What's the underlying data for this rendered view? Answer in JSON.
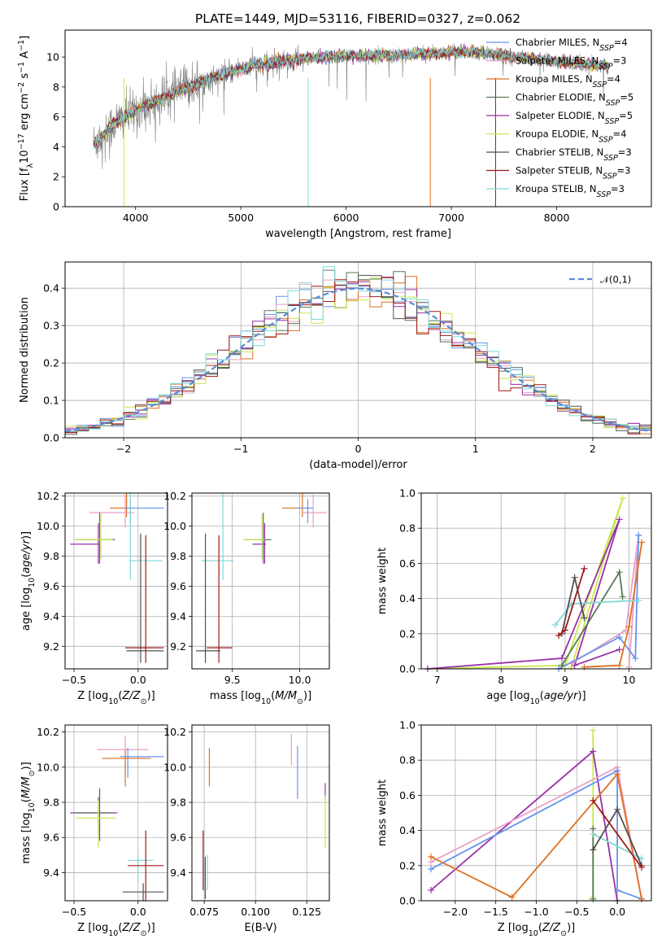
{
  "title": "PLATE=1449, MJD=53116, FIBERID=0327, z=0.062",
  "colors": {
    "chabrier_miles": "#6495ed",
    "salpeter_miles": "#e9a0c8",
    "kroupa_miles": "#e07020",
    "chabrier_elodie": "#587858",
    "salpeter_elodie": "#9b2fa8",
    "kroupa_elodie": "#c8e850",
    "chabrier_stelib": "#505050",
    "salpeter_stelib": "#a01818",
    "kroupa_stelib": "#80d8d8",
    "normal": "#5a8ad8",
    "spectrum": "#808080",
    "grid": "#b0b0b0"
  },
  "legend_spectrum": [
    {
      "key": "chabrier_miles",
      "label": "Chabrier MILES, N",
      "sub": "SSP",
      "suffix": "=4"
    },
    {
      "key": "salpeter_miles",
      "label": "Salpeter MILES, N",
      "sub": "SSP",
      "suffix": "=3"
    },
    {
      "key": "kroupa_miles",
      "label": "Kroupa MILES, N",
      "sub": "SSP",
      "suffix": "=4"
    },
    {
      "key": "chabrier_elodie",
      "label": "Chabrier ELODIE, N",
      "sub": "SSP",
      "suffix": "=5"
    },
    {
      "key": "salpeter_elodie",
      "label": "Salpeter ELODIE, N",
      "sub": "SSP",
      "suffix": "=5"
    },
    {
      "key": "kroupa_elodie",
      "label": "Kroupa ELODIE, N",
      "sub": "SSP",
      "suffix": "=4"
    },
    {
      "key": "chabrier_stelib",
      "label": "Chabrier STELIB, N",
      "sub": "SSP",
      "suffix": "=3"
    },
    {
      "key": "salpeter_stelib",
      "label": "Salpeter STELIB, N",
      "sub": "SSP",
      "suffix": "=3"
    },
    {
      "key": "kroupa_stelib",
      "label": "Kroupa STELIB, N",
      "sub": "SSP",
      "suffix": "=3"
    }
  ],
  "chart_data": [
    {
      "id": "spectrum",
      "type": "line",
      "xlabel": "wavelength [Angstrom, rest frame]",
      "ylabel": "Flux [f",
      "xlim": [
        3330,
        8900
      ],
      "ylim": [
        0,
        11.8
      ],
      "xticks": [
        4000,
        5000,
        6000,
        7000,
        8000
      ],
      "yticks": [
        0,
        2,
        4,
        6,
        8,
        10
      ],
      "data_x_range": [
        3600,
        8500
      ],
      "continuum_points": [
        [
          3600,
          4.2
        ],
        [
          3700,
          4.8
        ],
        [
          3800,
          5.6
        ],
        [
          3900,
          6.0
        ],
        [
          4000,
          6.4
        ],
        [
          4100,
          6.8
        ],
        [
          4200,
          7.0
        ],
        [
          4300,
          7.4
        ],
        [
          4400,
          7.7
        ],
        [
          4500,
          8.0
        ],
        [
          4700,
          8.5
        ],
        [
          4900,
          9.0
        ],
        [
          5100,
          9.4
        ],
        [
          5300,
          9.6
        ],
        [
          5500,
          9.8
        ],
        [
          5800,
          10.0
        ],
        [
          6100,
          10.1
        ],
        [
          6400,
          10.1
        ],
        [
          6700,
          10.2
        ],
        [
          7000,
          10.3
        ],
        [
          7300,
          10.3
        ],
        [
          7600,
          10.0
        ],
        [
          8000,
          9.7
        ],
        [
          8300,
          9.5
        ],
        [
          8500,
          9.4
        ]
      ]
    },
    {
      "id": "residuals",
      "type": "histogram",
      "xlabel": "(data-model)/error",
      "ylabel": "Normed distribution",
      "xlim": [
        -2.5,
        2.5
      ],
      "ylim": [
        0,
        0.47
      ],
      "xticks": [
        -2,
        -1,
        0,
        1,
        2
      ],
      "yticks": [
        0.0,
        0.1,
        0.2,
        0.3,
        0.4
      ],
      "legend": "𝒩(0,1)",
      "bin_range": [
        -2.5,
        2.5
      ],
      "bins": 50
    },
    {
      "id": "age_vs_Z",
      "type": "scatter",
      "xlabel": "Z [log",
      "ylabel": "age  [log",
      "xlim": [
        -0.57,
        0.23
      ],
      "ylim": [
        9.05,
        10.22
      ],
      "xticks": [
        -0.5,
        0.0
      ],
      "yticks": [
        9.2,
        9.4,
        9.6,
        9.8,
        10.0,
        10.2
      ],
      "points": [
        {
          "key": "kroupa_miles",
          "x": -0.09,
          "y": 10.12,
          "xerr": [
            0.13,
            0.04
          ],
          "yerr": [
            0.06,
            0.2
          ]
        },
        {
          "key": "salpeter_miles",
          "x": -0.1,
          "y": 10.09,
          "xerr": [
            0.28,
            0.07
          ],
          "yerr": [
            0.1,
            0.12
          ]
        },
        {
          "key": "chabrier_miles",
          "x": -0.06,
          "y": 10.12,
          "xerr": [
            0.05,
            0.26
          ],
          "yerr": [
            0.1,
            0.06
          ]
        },
        {
          "key": "chabrier_elodie",
          "x": -0.3,
          "y": 9.91,
          "xerr": [
            0.19,
            0.12
          ],
          "yerr": [
            0.16,
            0.18
          ]
        },
        {
          "key": "salpeter_elodie",
          "x": -0.31,
          "y": 9.88,
          "xerr": [
            0.22,
            0.01
          ],
          "yerr": [
            0.13,
            0.14
          ]
        },
        {
          "key": "kroupa_elodie",
          "x": -0.29,
          "y": 9.91,
          "xerr": [
            0.2,
            0.09
          ],
          "yerr": [
            0.13,
            0.17
          ]
        },
        {
          "key": "kroupa_stelib",
          "x": -0.06,
          "y": 9.77,
          "xerr": [
            0.01,
            0.25
          ],
          "yerr": [
            0.13,
            0.6
          ]
        },
        {
          "key": "chabrier_stelib",
          "x": 0.02,
          "y": 9.17,
          "xerr": [
            0.11,
            0.18
          ],
          "yerr": [
            0.08,
            0.78
          ]
        },
        {
          "key": "salpeter_stelib",
          "x": 0.06,
          "y": 9.19,
          "xerr": [
            0.16,
            0.14
          ],
          "yerr": [
            0.1,
            0.75
          ]
        }
      ]
    },
    {
      "id": "age_vs_mass",
      "type": "scatter",
      "xlabel": "mass [log",
      "ylabel": "",
      "xlim": [
        9.2,
        10.22
      ],
      "ylim": [
        9.05,
        10.22
      ],
      "xticks": [
        9.5,
        10.0
      ],
      "yticks": [
        9.2,
        9.4,
        9.6,
        9.8,
        10.0,
        10.2
      ],
      "points": [
        {
          "key": "kroupa_miles",
          "x": 10.02,
          "y": 10.12,
          "xerr": [
            0.15,
            0.05
          ],
          "yerr": [
            0.06,
            0.2
          ]
        },
        {
          "key": "salpeter_miles",
          "x": 10.1,
          "y": 10.09,
          "xerr": [
            0.08,
            0.1
          ],
          "yerr": [
            0.1,
            0.12
          ]
        },
        {
          "key": "chabrier_miles",
          "x": 10.06,
          "y": 10.12,
          "xerr": [
            0.08,
            0.04
          ],
          "yerr": [
            0.1,
            0.06
          ]
        },
        {
          "key": "chabrier_elodie",
          "x": 9.73,
          "y": 9.91,
          "xerr": [
            0.14,
            0.06
          ],
          "yerr": [
            0.16,
            0.18
          ]
        },
        {
          "key": "salpeter_elodie",
          "x": 9.74,
          "y": 9.88,
          "xerr": [
            0.09,
            0.01
          ],
          "yerr": [
            0.13,
            0.14
          ]
        },
        {
          "key": "kroupa_elodie",
          "x": 9.72,
          "y": 9.91,
          "xerr": [
            0.14,
            0.02
          ],
          "yerr": [
            0.13,
            0.17
          ]
        },
        {
          "key": "kroupa_stelib",
          "x": 9.43,
          "y": 9.77,
          "xerr": [
            0.16,
            0.08
          ],
          "yerr": [
            0.13,
            0.6
          ]
        },
        {
          "key": "chabrier_stelib",
          "x": 9.3,
          "y": 9.17,
          "xerr": [
            0.07,
            0.11
          ],
          "yerr": [
            0.08,
            0.78
          ]
        },
        {
          "key": "salpeter_stelib",
          "x": 9.4,
          "y": 9.19,
          "xerr": [
            0.09,
            0.1
          ],
          "yerr": [
            0.1,
            0.75
          ]
        }
      ]
    },
    {
      "id": "weight_vs_age",
      "type": "line",
      "xlabel": "age  [log",
      "ylabel": "mass weight",
      "xlim": [
        6.75,
        10.35
      ],
      "ylim": [
        0,
        1.0
      ],
      "xticks": [
        7,
        8,
        9,
        10
      ],
      "yticks": [
        0.0,
        0.2,
        0.4,
        0.6,
        0.8,
        1.0
      ],
      "series": [
        {
          "key": "kroupa_elodie",
          "points": [
            [
              6.85,
              0.0
            ],
            [
              9.0,
              0.02
            ],
            [
              9.9,
              0.97
            ],
            [
              9.1,
              0.01
            ]
          ]
        },
        {
          "key": "salpeter_elodie",
          "points": [
            [
              6.85,
              0.0
            ],
            [
              8.95,
              0.06
            ],
            [
              9.85,
              0.85
            ],
            [
              9.15,
              0.02
            ],
            [
              9.85,
              0.11
            ]
          ]
        },
        {
          "key": "salpeter_miles",
          "points": [
            [
              9.1,
              0.03
            ],
            [
              9.95,
              0.22
            ],
            [
              10.15,
              0.76
            ],
            [
              10.0,
              0.01
            ]
          ]
        },
        {
          "key": "chabrier_miles",
          "points": [
            [
              8.9,
              0.0
            ],
            [
              9.85,
              0.18
            ],
            [
              10.1,
              0.06
            ],
            [
              10.15,
              0.76
            ]
          ]
        },
        {
          "key": "kroupa_miles",
          "points": [
            [
              9.3,
              0.01
            ],
            [
              9.85,
              0.02
            ],
            [
              10.0,
              0.24
            ],
            [
              10.2,
              0.72
            ]
          ]
        },
        {
          "key": "chabrier_elodie",
          "points": [
            [
              8.95,
              0.02
            ],
            [
              9.85,
              0.55
            ],
            [
              9.9,
              0.41
            ]
          ]
        },
        {
          "key": "kroupa_stelib",
          "points": [
            [
              8.85,
              0.25
            ],
            [
              9.1,
              0.37
            ],
            [
              10.15,
              0.39
            ]
          ]
        },
        {
          "key": "chabrier_stelib",
          "points": [
            [
              8.95,
              0.2
            ],
            [
              9.15,
              0.52
            ],
            [
              9.3,
              0.29
            ]
          ]
        },
        {
          "key": "salpeter_stelib",
          "points": [
            [
              8.9,
              0.19
            ],
            [
              9.0,
              0.22
            ],
            [
              9.3,
              0.57
            ]
          ]
        }
      ]
    },
    {
      "id": "mass_vs_Z",
      "type": "scatter",
      "xlabel": "Z [log",
      "ylabel": "mass [log",
      "xlim": [
        -0.57,
        0.23
      ],
      "ylim": [
        9.24,
        10.24
      ],
      "xticks": [
        -0.5,
        0.0
      ],
      "yticks": [
        9.4,
        9.6,
        9.8,
        10.0,
        10.2
      ],
      "points": [
        {
          "key": "salpeter_miles",
          "x": -0.1,
          "y": 10.1,
          "xerr": [
            0.22,
            0.18
          ],
          "yerr": [
            0.12,
            0.08
          ]
        },
        {
          "key": "chabrier_miles",
          "x": -0.08,
          "y": 10.06,
          "xerr": [
            0.06,
            0.28
          ],
          "yerr": [
            0.12,
            0.05
          ]
        },
        {
          "key": "kroupa_miles",
          "x": -0.1,
          "y": 10.05,
          "xerr": [
            0.18,
            0.2
          ],
          "yerr": [
            0.16,
            0.05
          ]
        },
        {
          "key": "salpeter_elodie",
          "x": -0.3,
          "y": 9.74,
          "xerr": [
            0.23,
            0.14
          ],
          "yerr": [
            0.16,
            0.14
          ]
        },
        {
          "key": "chabrier_elodie",
          "x": -0.31,
          "y": 9.74,
          "xerr": [
            0.19,
            0.12
          ],
          "yerr": [
            0.14,
            0.09
          ]
        },
        {
          "key": "kroupa_elodie",
          "x": -0.31,
          "y": 9.71,
          "xerr": [
            0.17,
            0.14
          ],
          "yerr": [
            0.17,
            0.1
          ]
        },
        {
          "key": "kroupa_stelib",
          "x": 0.0,
          "y": 9.47,
          "xerr": [
            0.08,
            0.12
          ],
          "yerr": [
            0.12,
            0.03
          ]
        },
        {
          "key": "salpeter_stelib",
          "x": 0.06,
          "y": 9.44,
          "xerr": [
            0.14,
            0.14
          ],
          "yerr": [
            0.2,
            0.2
          ]
        },
        {
          "key": "chabrier_stelib",
          "x": 0.04,
          "y": 9.29,
          "xerr": [
            0.16,
            0.16
          ],
          "yerr": [
            0.05,
            0.05
          ]
        }
      ]
    },
    {
      "id": "ebv",
      "type": "scatter",
      "xlabel": "E(B-V)",
      "ylabel": "",
      "xlim": [
        0.069,
        0.136
      ],
      "ylim": [
        9.24,
        10.24
      ],
      "xticks": [
        0.075,
        0.1,
        0.125
      ],
      "yticks": [
        9.4,
        9.6,
        9.8,
        10.0,
        10.2
      ],
      "points": [
        {
          "key": "kroupa_miles",
          "x": 0.0775,
          "y": 10.0,
          "yerr": [
            0.11,
            0.11
          ]
        },
        {
          "key": "salpeter_miles",
          "x": 0.1175,
          "y": 10.1,
          "yerr": [
            0.09,
            0.09
          ]
        },
        {
          "key": "chabrier_miles",
          "x": 0.1205,
          "y": 9.97,
          "yerr": [
            0.15,
            0.15
          ]
        },
        {
          "key": "salpeter_elodie",
          "x": 0.134,
          "y": 9.86,
          "yerr": [
            0.05,
            0.05
          ]
        },
        {
          "key": "kroupa_elodie",
          "x": 0.134,
          "y": 9.69,
          "yerr": [
            0.15,
            0.15
          ]
        },
        {
          "key": "salpeter_stelib",
          "x": 0.0745,
          "y": 9.47,
          "yerr": [
            0.17,
            0.17
          ]
        },
        {
          "key": "chabrier_stelib",
          "x": 0.0755,
          "y": 9.37,
          "yerr": [
            0.12,
            0.12
          ]
        },
        {
          "key": "kroupa_stelib",
          "x": 0.0765,
          "y": 9.4,
          "yerr": [
            0.1,
            0.1
          ]
        }
      ]
    },
    {
      "id": "weight_vs_Z",
      "type": "line",
      "xlabel": "Z [log",
      "ylabel": "mass weight",
      "xlim": [
        -2.42,
        0.42
      ],
      "ylim": [
        0,
        1.0
      ],
      "xticks": [
        -2.0,
        -1.5,
        -1.0,
        -0.5,
        0.0
      ],
      "yticks": [
        0.0,
        0.2,
        0.4,
        0.6,
        0.8,
        1.0
      ],
      "series": [
        {
          "key": "kroupa_elodie",
          "points": [
            [
              -0.3,
              0.97
            ],
            [
              -0.3,
              0.02
            ],
            [
              -0.3,
              0.41
            ]
          ]
        },
        {
          "key": "salpeter_elodie",
          "points": [
            [
              -2.3,
              0.06
            ],
            [
              -0.3,
              0.85
            ],
            [
              0.0,
              0.0
            ]
          ]
        },
        {
          "key": "salpeter_miles",
          "points": [
            [
              -2.3,
              0.22
            ],
            [
              0.0,
              0.76
            ],
            [
              0.3,
              0.01
            ]
          ]
        },
        {
          "key": "chabrier_miles",
          "points": [
            [
              -2.3,
              0.18
            ],
            [
              0.0,
              0.74
            ],
            [
              0.0,
              0.06
            ],
            [
              0.3,
              0.01
            ]
          ]
        },
        {
          "key": "kroupa_miles",
          "points": [
            [
              -2.3,
              0.25
            ],
            [
              -1.3,
              0.02
            ],
            [
              0.0,
              0.72
            ],
            [
              0.3,
              0.01
            ]
          ]
        },
        {
          "key": "chabrier_elodie",
          "points": [
            [
              -0.3,
              0.41
            ],
            [
              -0.3,
              0.01
            ]
          ]
        },
        {
          "key": "kroupa_stelib",
          "points": [
            [
              -0.3,
              0.38
            ],
            [
              0.3,
              0.24
            ]
          ]
        },
        {
          "key": "chabrier_stelib",
          "points": [
            [
              -0.3,
              0.29
            ],
            [
              0.0,
              0.52
            ],
            [
              0.3,
              0.2
            ]
          ]
        },
        {
          "key": "salpeter_stelib",
          "points": [
            [
              -0.3,
              0.57
            ],
            [
              0.3,
              0.19
            ]
          ]
        }
      ]
    }
  ]
}
